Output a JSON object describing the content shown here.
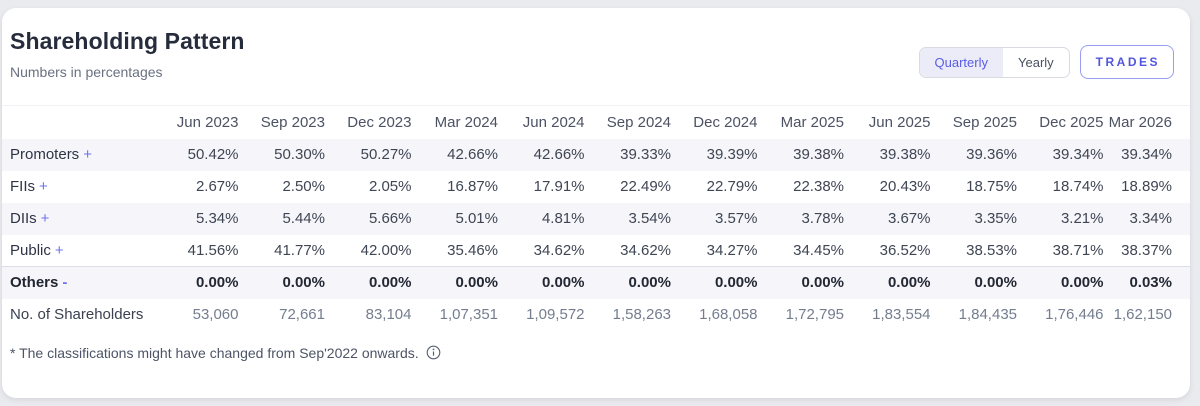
{
  "header": {
    "title": "Shareholding Pattern",
    "subtitle": "Numbers in percentages"
  },
  "controls": {
    "period_toggle": {
      "options": [
        "Quarterly",
        "Yearly"
      ],
      "selected": "Quarterly"
    },
    "trades_label": "TRADES",
    "accent_color": "#5256de",
    "toggle_selected_bg": "#ececf9"
  },
  "table": {
    "columns": [
      "Jun 2023",
      "Sep 2023",
      "Dec 2023",
      "Mar 2024",
      "Jun 2024",
      "Sep 2024",
      "Dec 2024",
      "Mar 2025",
      "Jun 2025",
      "Sep 2025",
      "Dec 2025",
      "Mar 2026"
    ],
    "rows": [
      {
        "label": "Promoters",
        "sign": "+",
        "values": [
          "50.42%",
          "50.30%",
          "50.27%",
          "42.66%",
          "42.66%",
          "39.33%",
          "39.39%",
          "39.38%",
          "39.38%",
          "39.36%",
          "39.34%",
          "39.34%"
        ]
      },
      {
        "label": "FIIs",
        "sign": "+",
        "values": [
          "2.67%",
          "2.50%",
          "2.05%",
          "16.87%",
          "17.91%",
          "22.49%",
          "22.79%",
          "22.38%",
          "20.43%",
          "18.75%",
          "18.74%",
          "18.89%"
        ]
      },
      {
        "label": "DIIs",
        "sign": "+",
        "values": [
          "5.34%",
          "5.44%",
          "5.66%",
          "5.01%",
          "4.81%",
          "3.54%",
          "3.57%",
          "3.78%",
          "3.67%",
          "3.35%",
          "3.21%",
          "3.34%"
        ]
      },
      {
        "label": "Public",
        "sign": "+",
        "values": [
          "41.56%",
          "41.77%",
          "42.00%",
          "35.46%",
          "34.62%",
          "34.62%",
          "34.27%",
          "34.45%",
          "36.52%",
          "38.53%",
          "38.71%",
          "38.37%"
        ]
      },
      {
        "label": "Others",
        "sign": "-",
        "emphasized": true,
        "values": [
          "0.00%",
          "0.00%",
          "0.00%",
          "0.00%",
          "0.00%",
          "0.00%",
          "0.00%",
          "0.00%",
          "0.00%",
          "0.00%",
          "0.00%",
          "0.03%"
        ]
      },
      {
        "label": "No. of Shareholders",
        "sign": "",
        "muted": true,
        "values": [
          "53,060",
          "72,661",
          "83,104",
          "1,07,351",
          "1,09,572",
          "1,58,263",
          "1,68,058",
          "1,72,795",
          "1,83,554",
          "1,84,435",
          "1,76,446",
          "1,62,150"
        ]
      }
    ]
  },
  "footnote": {
    "text": "* The classifications might have changed from Sep'2022 onwards.",
    "icon": "info-icon"
  }
}
